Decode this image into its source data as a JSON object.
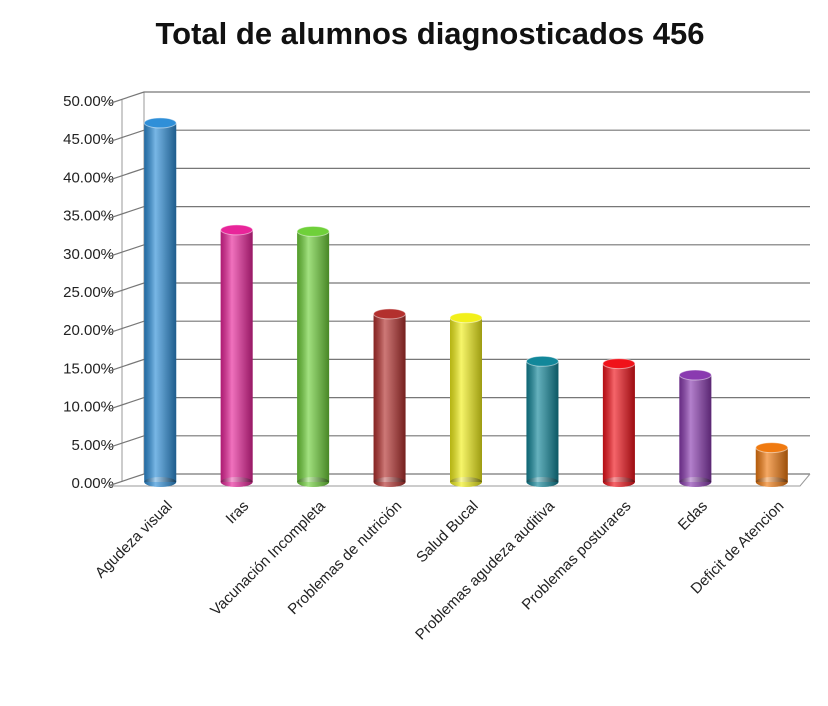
{
  "chart_data": {
    "type": "bar",
    "title": "Total de alumnos diagnosticados 456",
    "categories": [
      "Agudeza visual",
      "Iras",
      "Vacunación Incompleta",
      "Problemas de nutrición",
      "Salud Bucal",
      "Problemas agudeza auditiva",
      "Problemas posturares",
      "Edas",
      "Deficit de Atencion"
    ],
    "values": [
      47,
      33,
      32.8,
      22,
      21.5,
      15.8,
      15.5,
      14,
      4.5
    ],
    "colors": [
      "#2f8fd8",
      "#e8259a",
      "#6fd03a",
      "#b3302e",
      "#f2f01a",
      "#12879a",
      "#f0121a",
      "#8a3bb0",
      "#f07a10"
    ],
    "ylim": [
      0,
      50
    ],
    "yticks": [
      {
        "value": 0,
        "label": "0.00%"
      },
      {
        "value": 5,
        "label": "5.00%"
      },
      {
        "value": 10,
        "label": "10.00%"
      },
      {
        "value": 15,
        "label": "15.00%"
      },
      {
        "value": 20,
        "label": "20.00%"
      },
      {
        "value": 25,
        "label": "25.00%"
      },
      {
        "value": 30,
        "label": "30.00%"
      },
      {
        "value": 35,
        "label": "35.00%"
      },
      {
        "value": 40,
        "label": "40.00%"
      },
      {
        "value": 45,
        "label": "45.00%"
      },
      {
        "value": 50,
        "label": "50.00%"
      }
    ],
    "grid": true
  }
}
